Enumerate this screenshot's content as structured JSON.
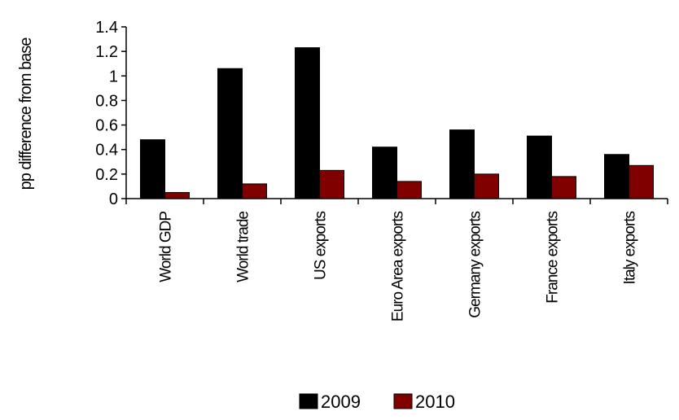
{
  "chart_data": {
    "type": "bar",
    "categories": [
      "World GDP",
      "World trade",
      "US exports",
      "Euro Area exports",
      "Germany exports",
      "France exports",
      "Italy exports"
    ],
    "series": [
      {
        "name": "2009",
        "values": [
          0.48,
          1.06,
          1.23,
          0.42,
          0.56,
          0.51,
          0.36
        ],
        "color": "#000000"
      },
      {
        "name": "2010",
        "values": [
          0.05,
          0.12,
          0.23,
          0.14,
          0.2,
          0.18,
          0.27
        ],
        "color": "#800000"
      }
    ],
    "ylabel": "pp difference from base",
    "ylim": [
      0,
      1.4
    ],
    "yticks": [
      0,
      0.2,
      0.4,
      0.6,
      0.8,
      1,
      1.2,
      1.4
    ],
    "ytick_labels": [
      "0",
      "0.2",
      "0.4",
      "0.6",
      "0.8",
      "1",
      "1.2",
      "1.4"
    ],
    "grid": false,
    "legend_position": "bottom"
  }
}
